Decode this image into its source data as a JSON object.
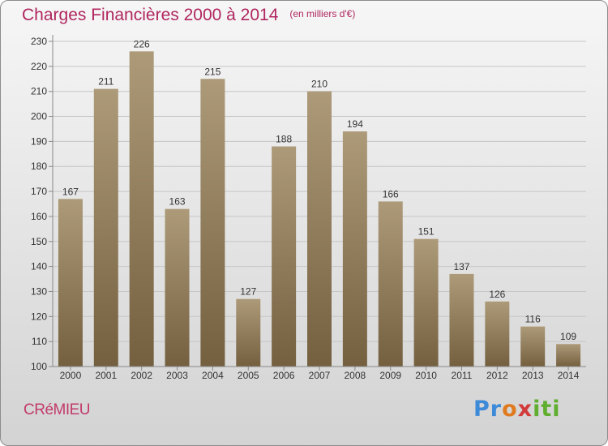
{
  "title": "Charges Financières 2000 à 2014",
  "subtitle": "(en milliers d'€)",
  "city": "CRéMIEU",
  "logo": {
    "p": "Pr",
    "o": "o",
    "x": "x",
    "iti": "iti"
  },
  "colors": {
    "title": "#b0265f",
    "bar_light": "#ad9a79",
    "bar_dark": "#74603f"
  },
  "chart_data": {
    "type": "bar",
    "categories": [
      "2000",
      "2001",
      "2002",
      "2003",
      "2004",
      "2005",
      "2006",
      "2007",
      "2008",
      "2009",
      "2010",
      "2011",
      "2012",
      "2013",
      "2014"
    ],
    "values": [
      167,
      211,
      226,
      163,
      215,
      127,
      188,
      210,
      194,
      166,
      151,
      137,
      126,
      116,
      109
    ],
    "ylim": [
      100,
      230
    ],
    "yticks": [
      100,
      110,
      120,
      130,
      140,
      150,
      160,
      170,
      180,
      190,
      200,
      210,
      220,
      230
    ],
    "grid": true,
    "data_labels": true
  }
}
